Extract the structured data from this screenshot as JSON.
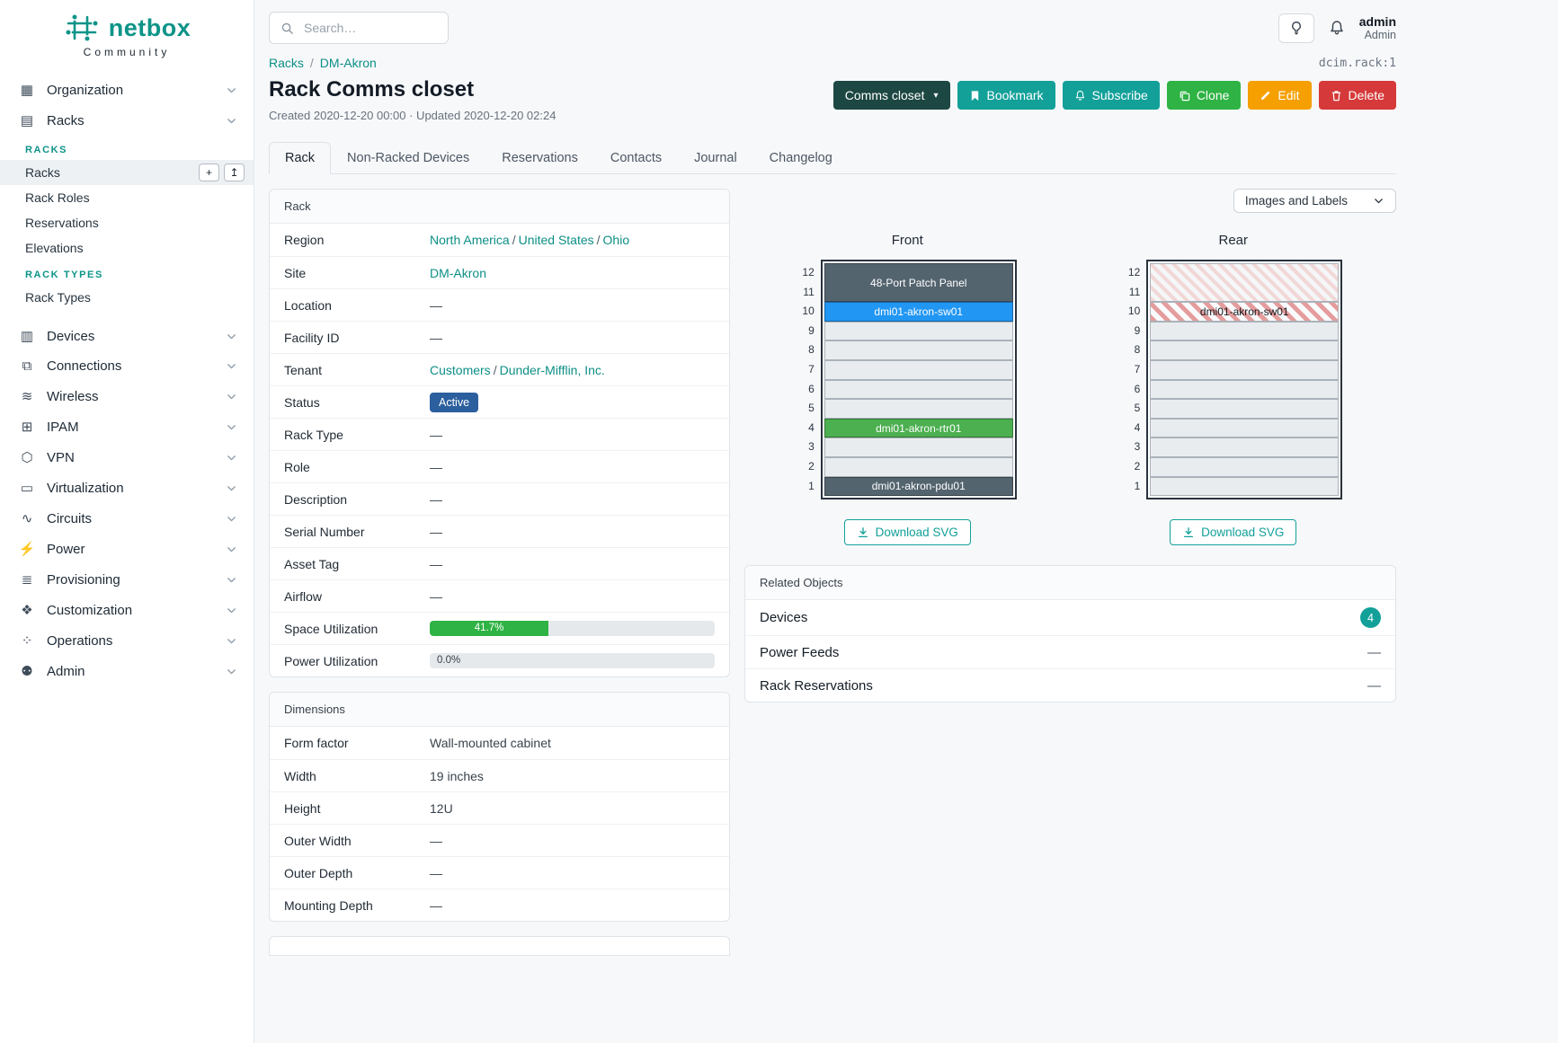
{
  "colors": {
    "teal_button": "#12a099",
    "link_teal": "#0d8f86",
    "context_dark": "#1d4742",
    "clone_green": "#2fb344",
    "edit_orange": "#f59f00",
    "delete_red": "#d63939",
    "status_active_blue": "#2c5f9e",
    "progress_green": "#2fb344",
    "device_slate": "#54646f",
    "device_blue": "#2196f3",
    "device_green": "#4caf50"
  },
  "brand": {
    "name": "netbox",
    "tagline": "Community"
  },
  "topbar": {
    "search_placeholder": "Search…",
    "user_name": "admin",
    "user_role": "Admin"
  },
  "sidebar": {
    "items": [
      {
        "label": "Organization",
        "icon_glyph": "▦"
      },
      {
        "label": "Racks",
        "icon_glyph": "▤",
        "expanded": true,
        "sections": [
          {
            "heading": "RACKS",
            "links": [
              {
                "label": "Racks",
                "active": true,
                "actions": [
                  {
                    "name": "add",
                    "glyph": "+"
                  },
                  {
                    "name": "import",
                    "glyph": "↥"
                  }
                ]
              },
              {
                "label": "Rack Roles"
              },
              {
                "label": "Reservations"
              },
              {
                "label": "Elevations"
              }
            ]
          },
          {
            "heading": "RACK TYPES",
            "links": [
              {
                "label": "Rack Types"
              }
            ]
          }
        ]
      },
      {
        "label": "Devices",
        "icon_glyph": "▥"
      },
      {
        "label": "Connections",
        "icon_glyph": "⧉"
      },
      {
        "label": "Wireless",
        "icon_glyph": "≋"
      },
      {
        "label": "IPAM",
        "icon_glyph": "⊞"
      },
      {
        "label": "VPN",
        "icon_glyph": "⬡"
      },
      {
        "label": "Virtualization",
        "icon_glyph": "▭"
      },
      {
        "label": "Circuits",
        "icon_glyph": "∿"
      },
      {
        "label": "Power",
        "icon_glyph": "⚡"
      },
      {
        "label": "Provisioning",
        "icon_glyph": "≣"
      },
      {
        "label": "Customization",
        "icon_glyph": "❖"
      },
      {
        "label": "Operations",
        "icon_glyph": "⁘"
      },
      {
        "label": "Admin",
        "icon_glyph": "⚉"
      }
    ]
  },
  "breadcrumb": [
    "Racks",
    "DM-Akron"
  ],
  "object_id": "dcim.rack:1",
  "page": {
    "title": "Rack Comms closet",
    "meta": "Created 2020-12-20 00:00 · Updated 2020-12-20 02:24"
  },
  "actions": {
    "context": "Comms closet",
    "bookmark": "Bookmark",
    "subscribe": "Subscribe",
    "clone": "Clone",
    "edit": "Edit",
    "delete": "Delete"
  },
  "tabs": [
    "Rack",
    "Non-Racked Devices",
    "Reservations",
    "Contacts",
    "Journal",
    "Changelog"
  ],
  "rack_panel": {
    "title": "Rack",
    "rows": [
      {
        "label": "Region",
        "type": "links",
        "links": [
          "North America",
          "United States",
          "Ohio"
        ]
      },
      {
        "label": "Site",
        "type": "links",
        "links": [
          "DM-Akron"
        ]
      },
      {
        "label": "Location",
        "value": "—"
      },
      {
        "label": "Facility ID",
        "value": "—"
      },
      {
        "label": "Tenant",
        "type": "links",
        "links": [
          "Customers",
          "Dunder-Mifflin, Inc."
        ]
      },
      {
        "label": "Status",
        "type": "badge",
        "value": "Active",
        "color": "#2c5f9e"
      },
      {
        "label": "Rack Type",
        "value": "—"
      },
      {
        "label": "Role",
        "value": "—"
      },
      {
        "label": "Description",
        "value": "—"
      },
      {
        "label": "Serial Number",
        "value": "—"
      },
      {
        "label": "Asset Tag",
        "value": "—"
      },
      {
        "label": "Airflow",
        "value": "—"
      },
      {
        "label": "Space Utilization",
        "type": "progress",
        "percent": 41.7,
        "text": "41.7%",
        "color": "#2fb344"
      },
      {
        "label": "Power Utilization",
        "type": "progress",
        "percent": 0,
        "text": "0.0%",
        "color": "#2fb344"
      }
    ]
  },
  "dimensions_panel": {
    "title": "Dimensions",
    "rows": [
      {
        "label": "Form factor",
        "value": "Wall-mounted cabinet"
      },
      {
        "label": "Width",
        "value": "19 inches"
      },
      {
        "label": "Height",
        "value": "12U"
      },
      {
        "label": "Outer Width",
        "value": "—"
      },
      {
        "label": "Outer Depth",
        "value": "—"
      },
      {
        "label": "Mounting Depth",
        "value": "—"
      }
    ]
  },
  "elevation": {
    "view_select": "Images and Labels",
    "download_label": "Download SVG",
    "units": 12,
    "front": {
      "title": "Front",
      "slots": [
        {
          "span": 2,
          "kind": "device",
          "label": "48-Port Patch Panel",
          "color": "#54646f",
          "text_color": "#ffffff"
        },
        {
          "span": 1,
          "kind": "device",
          "label": "dmi01-akron-sw01",
          "color": "#2196f3",
          "text_color": "#ffffff"
        },
        {
          "span": 1,
          "kind": "empty"
        },
        {
          "span": 1,
          "kind": "empty"
        },
        {
          "span": 1,
          "kind": "empty"
        },
        {
          "span": 1,
          "kind": "empty"
        },
        {
          "span": 1,
          "kind": "empty"
        },
        {
          "span": 1,
          "kind": "device",
          "label": "dmi01-akron-rtr01",
          "color": "#4caf50",
          "text_color": "#ffffff"
        },
        {
          "span": 1,
          "kind": "empty"
        },
        {
          "span": 1,
          "kind": "empty"
        },
        {
          "span": 1,
          "kind": "device",
          "label": "dmi01-akron-pdu01",
          "color": "#54646f",
          "text_color": "#ffffff"
        }
      ]
    },
    "rear": {
      "title": "Rear",
      "slots": [
        {
          "span": 2,
          "kind": "hatch-light"
        },
        {
          "span": 1,
          "kind": "hatch-red",
          "label": "dmi01-akron-sw01",
          "text_color": "#141a20"
        },
        {
          "span": 1,
          "kind": "empty"
        },
        {
          "span": 1,
          "kind": "empty"
        },
        {
          "span": 1,
          "kind": "empty"
        },
        {
          "span": 1,
          "kind": "empty"
        },
        {
          "span": 1,
          "kind": "empty"
        },
        {
          "span": 1,
          "kind": "empty"
        },
        {
          "span": 1,
          "kind": "empty"
        },
        {
          "span": 1,
          "kind": "empty"
        },
        {
          "span": 1,
          "kind": "empty"
        }
      ]
    }
  },
  "related_objects": {
    "title": "Related Objects",
    "rows": [
      {
        "label": "Devices",
        "count": "4"
      },
      {
        "label": "Power Feeds",
        "value": "—"
      },
      {
        "label": "Rack Reservations",
        "value": "—"
      }
    ]
  }
}
